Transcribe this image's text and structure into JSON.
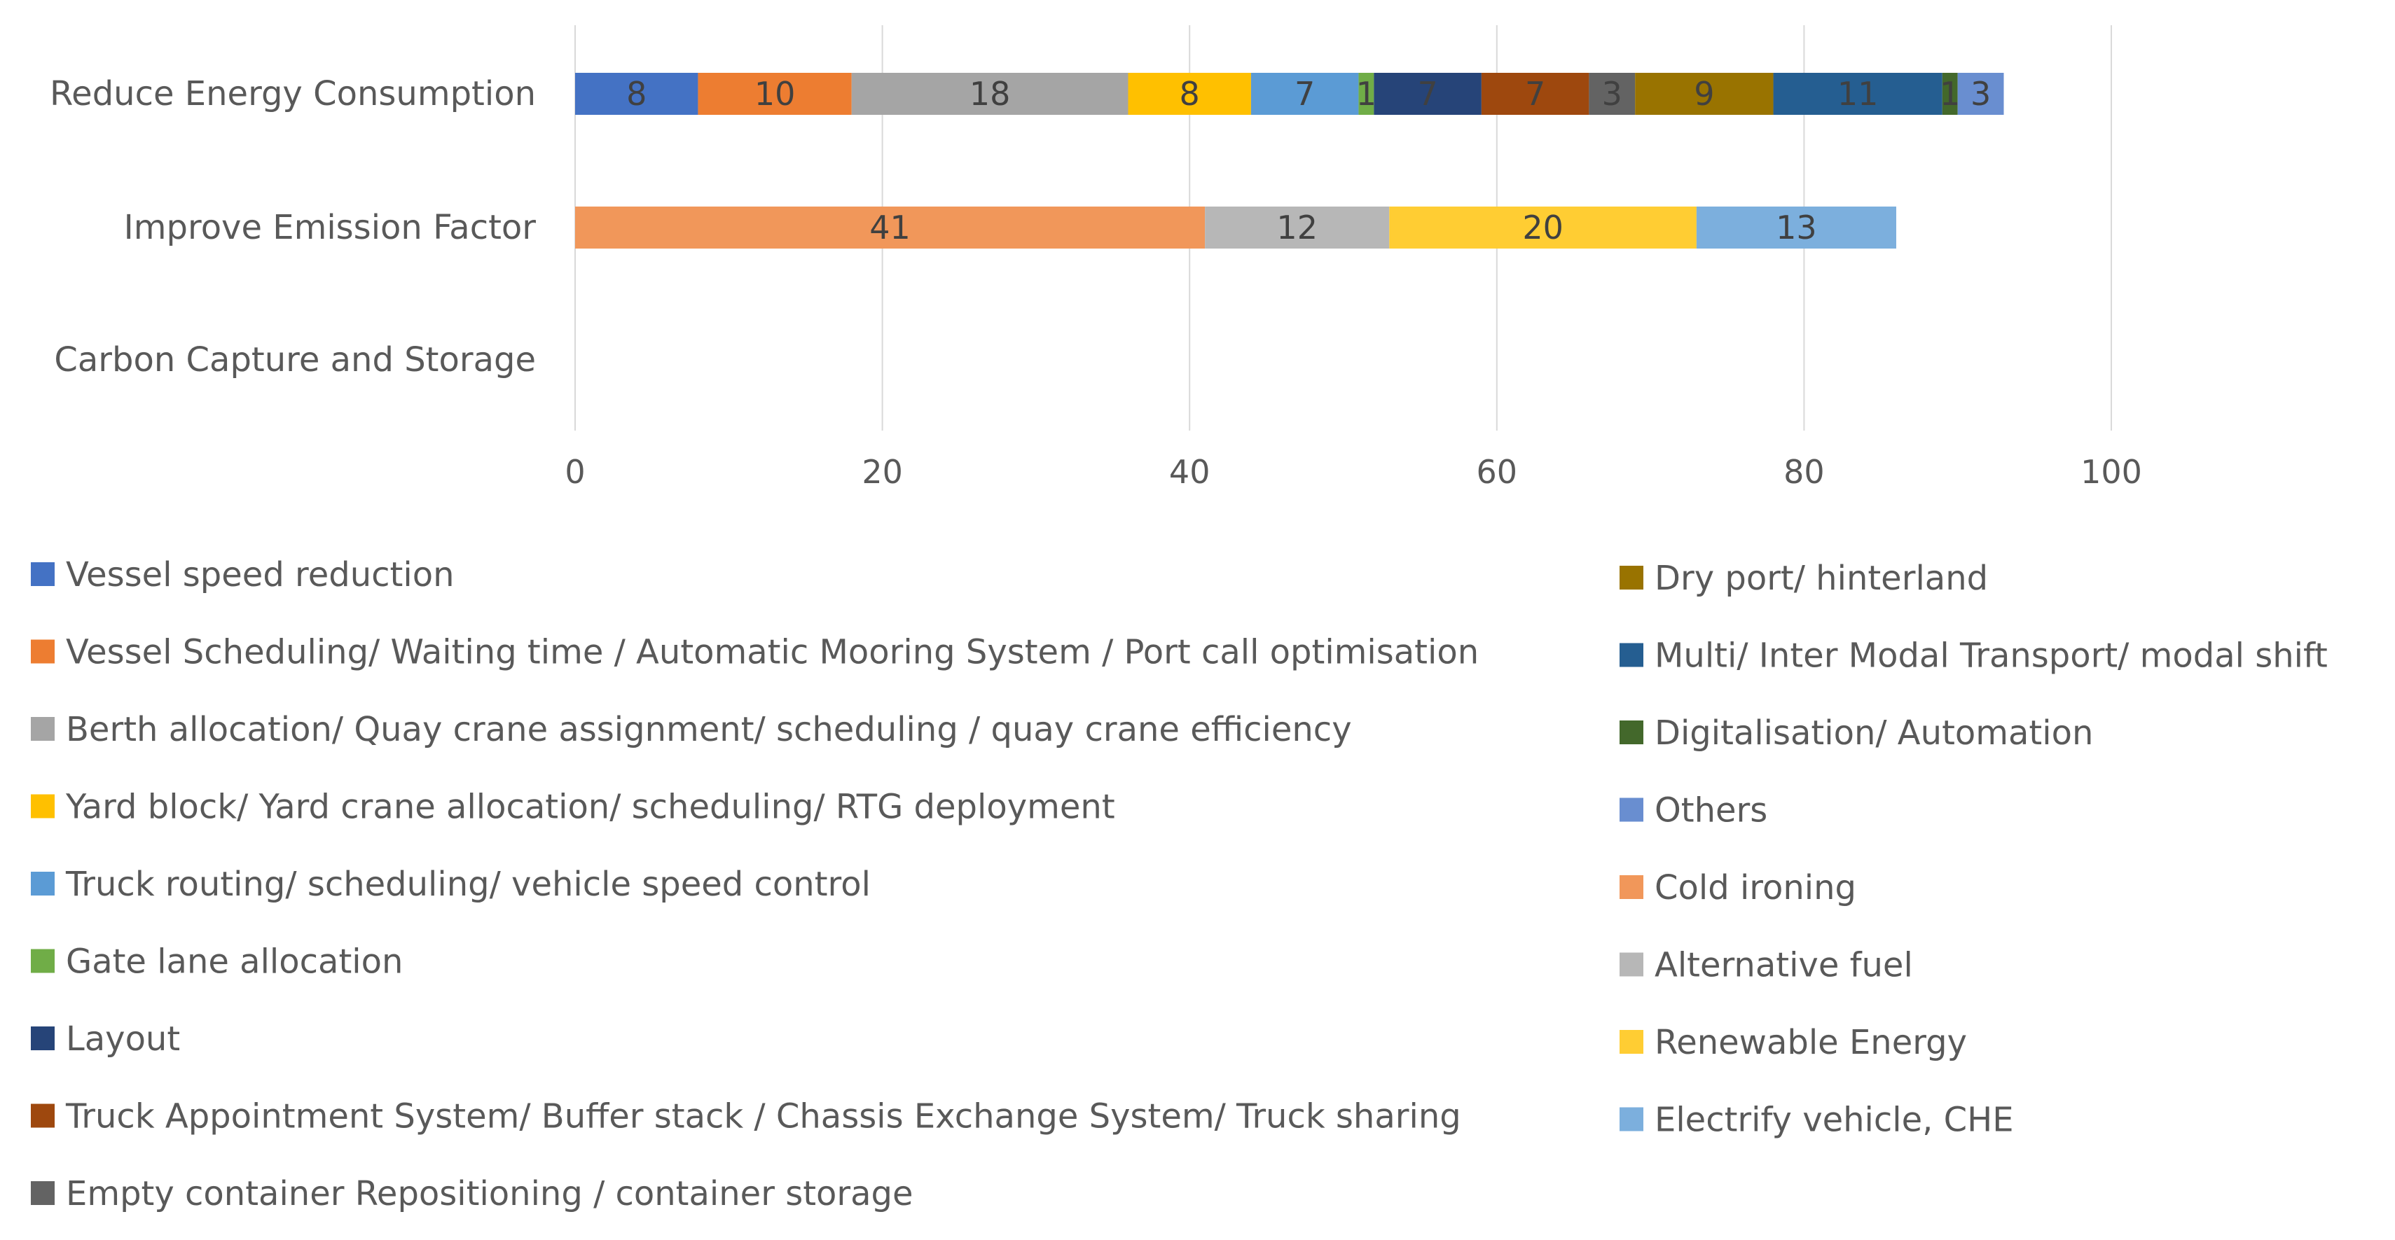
{
  "chart_data": {
    "type": "bar",
    "orientation": "horizontal",
    "stacked": true,
    "title": "",
    "xlabel": "",
    "ylabel": "",
    "xlim": [
      0,
      100
    ],
    "x_ticks": [
      "0",
      "20",
      "40",
      "60",
      "80",
      "100"
    ],
    "grid": true,
    "legend_position": "bottom",
    "categories": [
      "Reduce Energy Consumption",
      "Improve Emission Factor",
      "Carbon Capture and Storage"
    ],
    "series": [
      {
        "name": "Vessel speed reduction",
        "color": "#4472C4",
        "values": [
          8,
          null,
          null
        ]
      },
      {
        "name": "Vessel Scheduling/ Waiting time / Automatic Mooring System / Port call optimisation",
        "color": "#ED7D31",
        "values": [
          10,
          null,
          null
        ]
      },
      {
        "name": "Berth allocation/ Quay crane assignment/ scheduling / quay crane efficiency",
        "color": "#A5A5A5",
        "values": [
          18,
          null,
          null
        ]
      },
      {
        "name": "Yard block/ Yard crane allocation/ scheduling/ RTG deployment",
        "color": "#FFC000",
        "values": [
          8,
          null,
          null
        ]
      },
      {
        "name": "Truck routing/ scheduling/ vehicle speed control",
        "color": "#5B9BD5",
        "values": [
          7,
          null,
          null
        ]
      },
      {
        "name": "Gate lane allocation",
        "color": "#70AD47",
        "values": [
          1,
          null,
          null
        ]
      },
      {
        "name": "Layout",
        "color": "#264478",
        "values": [
          7,
          null,
          null
        ]
      },
      {
        "name": "Truck Appointment System/ Buffer stack / Chassis Exchange System/ Truck sharing",
        "color": "#9E480E",
        "values": [
          7,
          null,
          null
        ]
      },
      {
        "name": "Empty container Repositioning / container storage",
        "color": "#636363",
        "values": [
          3,
          null,
          null
        ]
      },
      {
        "name": "Dry port/ hinterland",
        "color": "#997300",
        "values": [
          9,
          null,
          null
        ]
      },
      {
        "name": "Multi/ Inter Modal Transport/ modal shift",
        "color": "#255E91",
        "values": [
          11,
          null,
          null
        ]
      },
      {
        "name": "Digitalisation/ Automation",
        "color": "#43682B",
        "values": [
          1,
          null,
          null
        ]
      },
      {
        "name": "Others",
        "color": "#698ED0",
        "values": [
          3,
          null,
          null
        ]
      },
      {
        "name": "Cold ironing",
        "color": "#F1975A",
        "values": [
          null,
          41,
          null
        ]
      },
      {
        "name": "Alternative fuel",
        "color": "#B7B7B7",
        "values": [
          null,
          12,
          null
        ]
      },
      {
        "name": "Renewable Energy",
        "color": "#FFCD33",
        "values": [
          null,
          20,
          null
        ]
      },
      {
        "name": "Electrify vehicle, CHE",
        "color": "#7CAFDD",
        "values": [
          null,
          13,
          null
        ]
      }
    ]
  }
}
